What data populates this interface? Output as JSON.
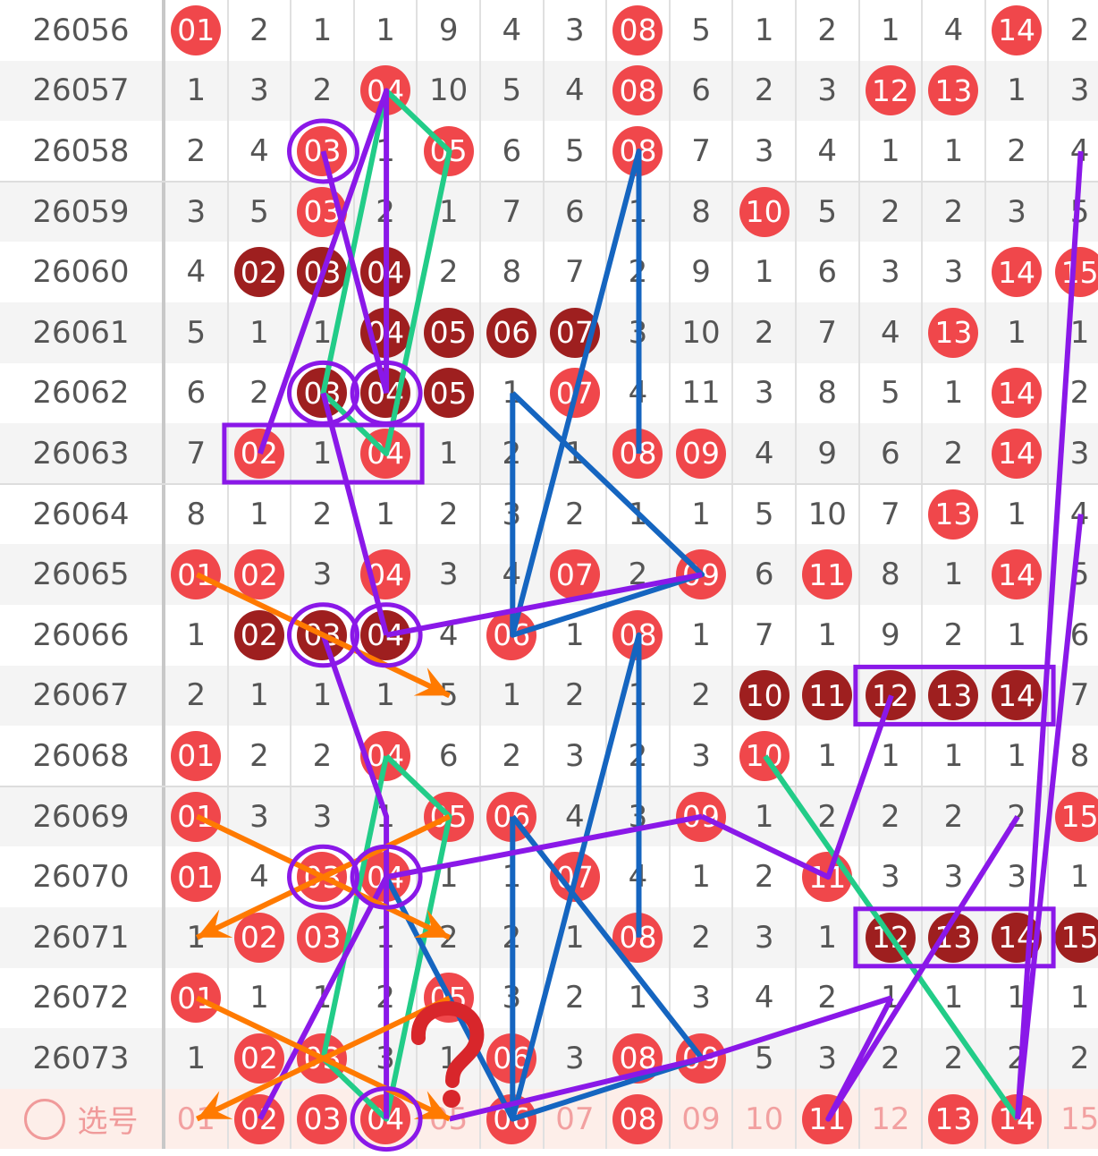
{
  "rows": [
    {
      "issue": "26056",
      "cells": [
        [
          "01",
          "r"
        ],
        [
          "2"
        ],
        [
          "1"
        ],
        [
          "1"
        ],
        [
          "9"
        ],
        [
          "4"
        ],
        [
          "3"
        ],
        [
          "08",
          "r"
        ],
        [
          "5"
        ],
        [
          "1"
        ],
        [
          "2"
        ],
        [
          "1"
        ],
        [
          "4"
        ],
        [
          "14",
          "r"
        ],
        [
          "2"
        ]
      ]
    },
    {
      "issue": "26057",
      "cells": [
        [
          "1"
        ],
        [
          "3"
        ],
        [
          "2"
        ],
        [
          "04",
          "r"
        ],
        [
          "10"
        ],
        [
          "5"
        ],
        [
          "4"
        ],
        [
          "08",
          "r"
        ],
        [
          "6"
        ],
        [
          "2"
        ],
        [
          "3"
        ],
        [
          "12",
          "r"
        ],
        [
          "13",
          "r"
        ],
        [
          "1"
        ],
        [
          "3"
        ]
      ]
    },
    {
      "issue": "26058",
      "cells": [
        [
          "2"
        ],
        [
          "4"
        ],
        [
          "03",
          "r"
        ],
        [
          "1"
        ],
        [
          "05",
          "r"
        ],
        [
          "6"
        ],
        [
          "5"
        ],
        [
          "08",
          "r"
        ],
        [
          "7"
        ],
        [
          "3"
        ],
        [
          "4"
        ],
        [
          "1"
        ],
        [
          "1"
        ],
        [
          "2"
        ],
        [
          "4"
        ]
      ]
    },
    {
      "issue": "26059",
      "cells": [
        [
          "3"
        ],
        [
          "5"
        ],
        [
          "03",
          "r"
        ],
        [
          "2"
        ],
        [
          "1"
        ],
        [
          "7"
        ],
        [
          "6"
        ],
        [
          "1"
        ],
        [
          "8"
        ],
        [
          "10",
          "r"
        ],
        [
          "5"
        ],
        [
          "2"
        ],
        [
          "2"
        ],
        [
          "3"
        ],
        [
          "5"
        ]
      ]
    },
    {
      "issue": "26060",
      "cells": [
        [
          "4"
        ],
        [
          "02",
          "d"
        ],
        [
          "03",
          "d"
        ],
        [
          "04",
          "d"
        ],
        [
          "2"
        ],
        [
          "8"
        ],
        [
          "7"
        ],
        [
          "2"
        ],
        [
          "9"
        ],
        [
          "1"
        ],
        [
          "6"
        ],
        [
          "3"
        ],
        [
          "3"
        ],
        [
          "14",
          "r"
        ],
        [
          "15",
          "r"
        ]
      ]
    },
    {
      "issue": "26061",
      "cells": [
        [
          "5"
        ],
        [
          "1"
        ],
        [
          "1"
        ],
        [
          "04",
          "d"
        ],
        [
          "05",
          "d"
        ],
        [
          "06",
          "d"
        ],
        [
          "07",
          "d"
        ],
        [
          "3"
        ],
        [
          "10"
        ],
        [
          "2"
        ],
        [
          "7"
        ],
        [
          "4"
        ],
        [
          "13",
          "r"
        ],
        [
          "1"
        ],
        [
          "1"
        ]
      ]
    },
    {
      "issue": "26062",
      "cells": [
        [
          "6"
        ],
        [
          "2"
        ],
        [
          "03",
          "d"
        ],
        [
          "04",
          "d"
        ],
        [
          "05",
          "d"
        ],
        [
          "1"
        ],
        [
          "07",
          "r"
        ],
        [
          "4"
        ],
        [
          "11"
        ],
        [
          "3"
        ],
        [
          "8"
        ],
        [
          "5"
        ],
        [
          "1"
        ],
        [
          "14",
          "r"
        ],
        [
          "2"
        ]
      ]
    },
    {
      "issue": "26063",
      "cells": [
        [
          "7"
        ],
        [
          "02",
          "r"
        ],
        [
          "1"
        ],
        [
          "04",
          "r"
        ],
        [
          "1"
        ],
        [
          "2"
        ],
        [
          "1"
        ],
        [
          "08",
          "r"
        ],
        [
          "09",
          "r"
        ],
        [
          "4"
        ],
        [
          "9"
        ],
        [
          "6"
        ],
        [
          "2"
        ],
        [
          "14",
          "r"
        ],
        [
          "3"
        ]
      ]
    },
    {
      "issue": "26064",
      "cells": [
        [
          "8"
        ],
        [
          "1"
        ],
        [
          "2"
        ],
        [
          "1"
        ],
        [
          "2"
        ],
        [
          "3"
        ],
        [
          "2"
        ],
        [
          "1"
        ],
        [
          "1"
        ],
        [
          "5"
        ],
        [
          "10"
        ],
        [
          "7"
        ],
        [
          "13",
          "r"
        ],
        [
          "1"
        ],
        [
          "4"
        ]
      ]
    },
    {
      "issue": "26065",
      "cells": [
        [
          "01",
          "r"
        ],
        [
          "02",
          "r"
        ],
        [
          "3"
        ],
        [
          "04",
          "r"
        ],
        [
          "3"
        ],
        [
          "4"
        ],
        [
          "07",
          "r"
        ],
        [
          "2"
        ],
        [
          "09",
          "r"
        ],
        [
          "6"
        ],
        [
          "11",
          "r"
        ],
        [
          "8"
        ],
        [
          "1"
        ],
        [
          "14",
          "r"
        ],
        [
          "5"
        ]
      ]
    },
    {
      "issue": "26066",
      "cells": [
        [
          "1"
        ],
        [
          "02",
          "d"
        ],
        [
          "03",
          "d"
        ],
        [
          "04",
          "d"
        ],
        [
          "4"
        ],
        [
          "06",
          "r"
        ],
        [
          "1"
        ],
        [
          "08",
          "r"
        ],
        [
          "1"
        ],
        [
          "7"
        ],
        [
          "1"
        ],
        [
          "9"
        ],
        [
          "2"
        ],
        [
          "1"
        ],
        [
          "6"
        ]
      ]
    },
    {
      "issue": "26067",
      "cells": [
        [
          "2"
        ],
        [
          "1"
        ],
        [
          "1"
        ],
        [
          "1"
        ],
        [
          "5"
        ],
        [
          "1"
        ],
        [
          "2"
        ],
        [
          "1"
        ],
        [
          "2"
        ],
        [
          "10",
          "d"
        ],
        [
          "11",
          "d"
        ],
        [
          "12",
          "d"
        ],
        [
          "13",
          "d"
        ],
        [
          "14",
          "d"
        ],
        [
          "7"
        ]
      ]
    },
    {
      "issue": "26068",
      "cells": [
        [
          "01",
          "r"
        ],
        [
          "2"
        ],
        [
          "2"
        ],
        [
          "04",
          "r"
        ],
        [
          "6"
        ],
        [
          "2"
        ],
        [
          "3"
        ],
        [
          "2"
        ],
        [
          "3"
        ],
        [
          "10",
          "r"
        ],
        [
          "1"
        ],
        [
          "1"
        ],
        [
          "1"
        ],
        [
          "1"
        ],
        [
          "8"
        ]
      ]
    },
    {
      "issue": "26069",
      "cells": [
        [
          "01",
          "r"
        ],
        [
          "3"
        ],
        [
          "3"
        ],
        [
          "1"
        ],
        [
          "05",
          "r"
        ],
        [
          "06",
          "r"
        ],
        [
          "4"
        ],
        [
          "3"
        ],
        [
          "09",
          "r"
        ],
        [
          "1"
        ],
        [
          "2"
        ],
        [
          "2"
        ],
        [
          "2"
        ],
        [
          "2"
        ],
        [
          "15",
          "r"
        ]
      ]
    },
    {
      "issue": "26070",
      "cells": [
        [
          "01",
          "r"
        ],
        [
          "4"
        ],
        [
          "03",
          "r"
        ],
        [
          "04",
          "r"
        ],
        [
          "1"
        ],
        [
          "1"
        ],
        [
          "07",
          "r"
        ],
        [
          "4"
        ],
        [
          "1"
        ],
        [
          "2"
        ],
        [
          "11",
          "r"
        ],
        [
          "3"
        ],
        [
          "3"
        ],
        [
          "3"
        ],
        [
          "1"
        ]
      ]
    },
    {
      "issue": "26071",
      "cells": [
        [
          "1"
        ],
        [
          "02",
          "r"
        ],
        [
          "03",
          "r"
        ],
        [
          "1"
        ],
        [
          "2"
        ],
        [
          "2"
        ],
        [
          "1"
        ],
        [
          "08",
          "r"
        ],
        [
          "2"
        ],
        [
          "3"
        ],
        [
          "1"
        ],
        [
          "12",
          "d"
        ],
        [
          "13",
          "d"
        ],
        [
          "14",
          "d"
        ],
        [
          "15",
          "d"
        ]
      ]
    },
    {
      "issue": "26072",
      "cells": [
        [
          "01",
          "r"
        ],
        [
          "1"
        ],
        [
          "1"
        ],
        [
          "2"
        ],
        [
          "05",
          "r"
        ],
        [
          "3"
        ],
        [
          "2"
        ],
        [
          "1"
        ],
        [
          "3"
        ],
        [
          "4"
        ],
        [
          "2"
        ],
        [
          "1"
        ],
        [
          "1"
        ],
        [
          "1"
        ],
        [
          "1"
        ]
      ]
    },
    {
      "issue": "26073",
      "cells": [
        [
          "1"
        ],
        [
          "02",
          "r"
        ],
        [
          "03",
          "r"
        ],
        [
          "3"
        ],
        [
          "1"
        ],
        [
          "06",
          "r"
        ],
        [
          "3"
        ],
        [
          "08",
          "r"
        ],
        [
          "09",
          "r"
        ],
        [
          "5"
        ],
        [
          "3"
        ],
        [
          "2"
        ],
        [
          "2"
        ],
        [
          "2"
        ],
        [
          "2"
        ]
      ]
    }
  ],
  "select_row": {
    "label": "选号",
    "cells": [
      [
        "01",
        "p"
      ],
      [
        "02",
        "r"
      ],
      [
        "03",
        "r"
      ],
      [
        "04",
        "r"
      ],
      [
        "05",
        "p"
      ],
      [
        "06",
        "r"
      ],
      [
        "07",
        "p"
      ],
      [
        "08",
        "r"
      ],
      [
        "09",
        "p"
      ],
      [
        "10",
        "p"
      ],
      [
        "11",
        "r"
      ],
      [
        "12",
        "p"
      ],
      [
        "13",
        "r"
      ],
      [
        "14",
        "r"
      ],
      [
        "15",
        "p"
      ]
    ]
  },
  "colors": {
    "red_ball": "#f0474b",
    "dark_ball": "#9e1f1f",
    "purple": "#8a18e8",
    "green": "#22cc88",
    "blue": "#1565c0",
    "orange": "#ff7a00"
  },
  "annotations": {
    "question_mark": "?",
    "purple": [
      [
        [
          7,
          1
        ],
        [
          1,
          3
        ],
        [
          6,
          3
        ]
      ],
      [
        [
          2,
          2
        ],
        [
          6,
          3
        ]
      ],
      [
        [
          6,
          2
        ],
        [
          10,
          3
        ]
      ],
      [
        [
          9,
          8
        ],
        [
          10,
          3
        ]
      ],
      [
        [
          10,
          2
        ],
        [
          13,
          3
        ],
        [
          18,
          3
        ]
      ],
      [
        [
          18,
          1
        ],
        [
          14,
          3
        ]
      ],
      [
        [
          13,
          8
        ],
        [
          14,
          3
        ]
      ],
      [
        [
          13,
          8
        ],
        [
          14,
          10
        ],
        [
          11,
          11
        ]
      ],
      [
        [
          18,
          4
        ],
        [
          17,
          8
        ],
        [
          16,
          11
        ]
      ],
      [
        [
          16,
          11
        ],
        [
          18,
          10
        ],
        [
          13,
          13
        ]
      ],
      [
        [
          18,
          13
        ],
        [
          8,
          14
        ]
      ],
      [
        [
          18,
          13
        ],
        [
          2,
          14
        ]
      ]
    ],
    "green": [
      [
        [
          1,
          3
        ],
        [
          2,
          4
        ],
        [
          7,
          3
        ],
        [
          6,
          2
        ],
        [
          1,
          3
        ]
      ],
      [
        [
          12,
          3
        ],
        [
          13,
          4
        ],
        [
          18,
          3
        ],
        [
          17,
          2
        ],
        [
          12,
          3
        ]
      ],
      [
        [
          12,
          9
        ],
        [
          18,
          13
        ]
      ]
    ],
    "blue": [
      [
        [
          6,
          5
        ],
        [
          10,
          5
        ],
        [
          2,
          7
        ],
        [
          10,
          5
        ]
      ],
      [
        [
          6,
          5
        ],
        [
          9,
          8
        ],
        [
          10,
          5
        ]
      ],
      [
        [
          2,
          7
        ],
        [
          7,
          7
        ]
      ],
      [
        [
          13,
          5
        ],
        [
          18,
          5
        ],
        [
          10,
          7
        ],
        [
          18,
          5
        ]
      ],
      [
        [
          13,
          5
        ],
        [
          17,
          8
        ],
        [
          18,
          5
        ]
      ],
      [
        [
          10,
          7
        ],
        [
          15,
          7
        ]
      ],
      [
        [
          14,
          3
        ],
        [
          18,
          5
        ]
      ]
    ],
    "orange": [
      [
        [
          9,
          0
        ],
        [
          11,
          4
        ]
      ],
      [
        [
          13,
          0
        ],
        [
          15,
          4
        ]
      ],
      [
        [
          13,
          4
        ],
        [
          15,
          0
        ]
      ],
      [
        [
          16,
          0
        ],
        [
          18,
          4
        ]
      ],
      [
        [
          16,
          4
        ],
        [
          18,
          0
        ]
      ]
    ],
    "circles": [
      [
        2,
        2
      ],
      [
        6,
        2
      ],
      [
        6,
        3
      ],
      [
        10,
        2
      ],
      [
        10,
        3
      ],
      [
        14,
        2
      ],
      [
        14,
        3
      ],
      [
        18,
        3
      ]
    ],
    "boxes": [
      [
        [
          7,
          1
        ],
        [
          7,
          3
        ]
      ],
      [
        [
          11,
          11
        ],
        [
          11,
          13
        ]
      ],
      [
        [
          15,
          11
        ],
        [
          15,
          13
        ]
      ]
    ]
  }
}
